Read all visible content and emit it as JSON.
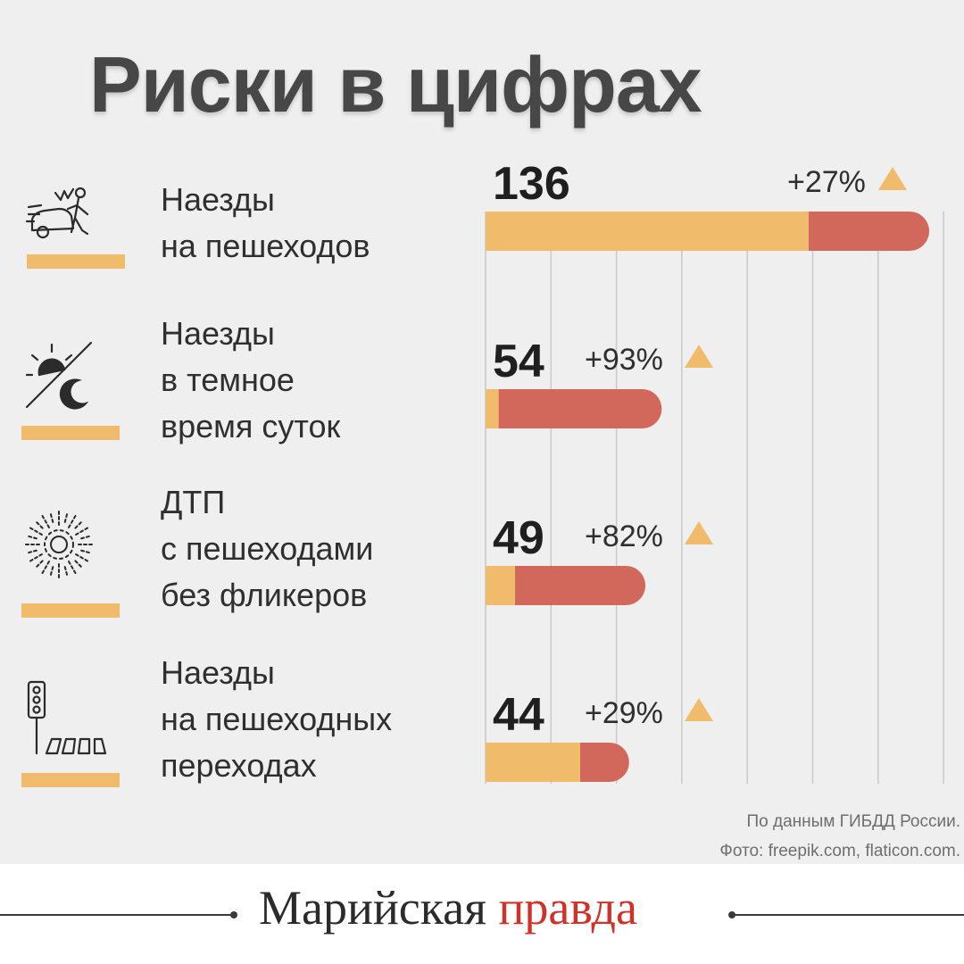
{
  "title": "Риски в цифрах",
  "colors": {
    "base": "#f0bb6b",
    "increase": "#d2675b",
    "triangle": "#f0bb6b"
  },
  "chart_data": {
    "type": "bar",
    "orientation": "horizontal",
    "stacked": true,
    "grid": true,
    "xlim": [
      0,
      140
    ],
    "categories": [
      [
        "Наезды",
        "на пешеходов"
      ],
      [
        "Наезды",
        "в темное",
        "время суток"
      ],
      [
        "ДТП",
        "с пешеходами",
        "без фликеров"
      ],
      [
        "Наезды",
        "на пешеходных",
        "переходах"
      ]
    ],
    "icons": [
      "car-pedestrian-crash-icon",
      "sun-moon-icon",
      "reflector-flicker-icon",
      "traffic-light-crosswalk-icon"
    ],
    "values": [
      136,
      54,
      49,
      44
    ],
    "value_labels": [
      "136",
      "54",
      "49",
      "44"
    ],
    "change_labels": [
      "+27%",
      "+93%",
      "+82%",
      "+29%"
    ],
    "series": [
      {
        "values": [
          99,
          4,
          9,
          29
        ]
      },
      {
        "values": [
          37,
          50,
          40,
          15
        ]
      }
    ]
  },
  "source": {
    "line1": "По данным ГИБДД России.",
    "line2": "Фото: freepik.com, flaticon.com."
  },
  "brand": {
    "part1": "Марийская",
    "part2": "правда"
  }
}
